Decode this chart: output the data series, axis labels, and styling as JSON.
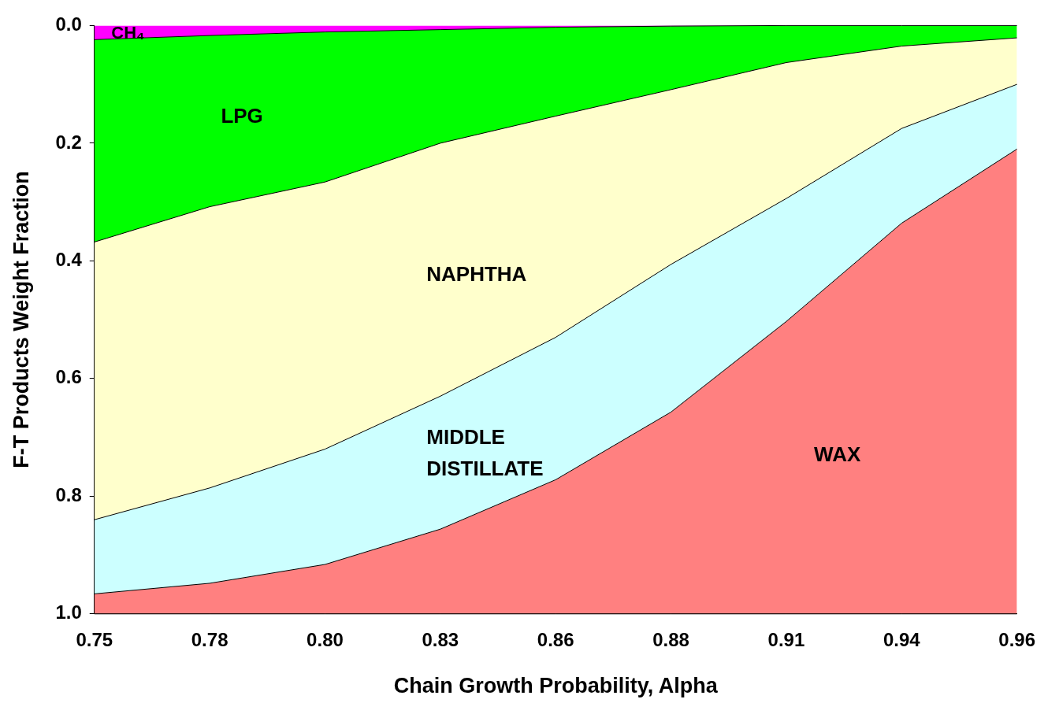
{
  "chart_data": {
    "type": "area",
    "stacked": true,
    "xlabel": "Chain Growth Probability, Alpha",
    "ylabel": "F-T Products Weight Fraction",
    "categories": [
      "0.75",
      "0.78",
      "0.80",
      "0.83",
      "0.86",
      "0.88",
      "0.91",
      "0.94",
      "0.96"
    ],
    "ylim": [
      1.0,
      0.0
    ],
    "yticks": [
      {
        "value": 0,
        "label": "0.0"
      },
      {
        "value": 0.2,
        "label": "0.2"
      },
      {
        "value": 0.4,
        "label": "0.4"
      },
      {
        "value": 0.6,
        "label": "0.6"
      },
      {
        "value": 0.8,
        "label": "0.8"
      },
      {
        "value": 1,
        "label": "1.0"
      }
    ],
    "grid": false,
    "legend": false,
    "series": [
      {
        "name": "CH₄",
        "color": "#ff00ff",
        "values": [
          0.024,
          0.017,
          0.011,
          0.007,
          0.003,
          0.001,
          0,
          0,
          0
        ]
      },
      {
        "name": "LPG",
        "color": "#00ff00",
        "values": [
          0.344,
          0.291,
          0.255,
          0.193,
          0.151,
          0.108,
          0.063,
          0.035,
          0.021
        ]
      },
      {
        "name": "NAPHTHA",
        "color": "#ffffcc",
        "values": [
          0.472,
          0.478,
          0.454,
          0.43,
          0.376,
          0.297,
          0.231,
          0.14,
          0.079
        ]
      },
      {
        "name": "MIDDLE DISTILLATE",
        "color": "#ccffff",
        "values": [
          0.126,
          0.162,
          0.196,
          0.226,
          0.242,
          0.251,
          0.209,
          0.161,
          0.11
        ]
      },
      {
        "name": "WAX",
        "color": "#ff8080",
        "values": [
          0.034,
          0.052,
          0.084,
          0.144,
          0.228,
          0.343,
          0.497,
          0.664,
          0.79
        ]
      }
    ]
  }
}
